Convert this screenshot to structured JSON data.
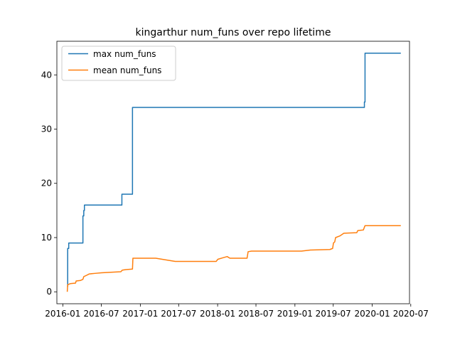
{
  "chart_data": {
    "type": "line",
    "title": "kingarthur num_funs over repo lifetime",
    "xlabel": "",
    "ylabel": "",
    "x_axis_type": "date",
    "xlim": [
      "2015-12-04",
      "2020-06-25"
    ],
    "ylim": [
      -2.2,
      46.2
    ],
    "x_ticks": [
      {
        "date": "2016-01-01",
        "label": "2016-01"
      },
      {
        "date": "2016-07-01",
        "label": "2016-07"
      },
      {
        "date": "2017-01-01",
        "label": "2017-01"
      },
      {
        "date": "2017-07-01",
        "label": "2017-07"
      },
      {
        "date": "2018-01-01",
        "label": "2018-01"
      },
      {
        "date": "2018-07-01",
        "label": "2018-07"
      },
      {
        "date": "2019-01-01",
        "label": "2019-01"
      },
      {
        "date": "2019-07-01",
        "label": "2019-07"
      },
      {
        "date": "2020-01-01",
        "label": "2020-01"
      },
      {
        "date": "2020-07-01",
        "label": "2020-07"
      }
    ],
    "y_ticks": [
      0,
      10,
      20,
      30,
      40
    ],
    "grid": false,
    "legend_position": "top-left",
    "series": [
      {
        "name": "max num_funs",
        "color": "#1f77b4",
        "step": true,
        "points": [
          [
            "2016-01-22",
            1
          ],
          [
            "2016-01-24",
            8
          ],
          [
            "2016-01-29",
            9
          ],
          [
            "2016-04-05",
            14
          ],
          [
            "2016-04-09",
            15
          ],
          [
            "2016-04-12",
            16
          ],
          [
            "2016-10-06",
            18
          ],
          [
            "2016-11-25",
            34
          ],
          [
            "2019-11-25",
            35
          ],
          [
            "2019-11-28",
            44
          ],
          [
            "2020-05-15",
            44
          ]
        ]
      },
      {
        "name": "mean num_funs",
        "color": "#ff7f0e",
        "step": false,
        "points": [
          [
            "2016-01-22",
            0
          ],
          [
            "2016-01-24",
            1.3
          ],
          [
            "2016-02-05",
            1.5
          ],
          [
            "2016-03-01",
            1.6
          ],
          [
            "2016-03-04",
            2.0
          ],
          [
            "2016-03-25",
            2.1
          ],
          [
            "2016-04-05",
            2.3
          ],
          [
            "2016-04-09",
            2.8
          ],
          [
            "2016-04-20",
            3.0
          ],
          [
            "2016-05-05",
            3.3
          ],
          [
            "2016-06-01",
            3.4
          ],
          [
            "2016-07-01",
            3.5
          ],
          [
            "2016-08-15",
            3.6
          ],
          [
            "2016-10-01",
            3.7
          ],
          [
            "2016-10-08",
            4.0
          ],
          [
            "2016-10-25",
            4.1
          ],
          [
            "2016-11-25",
            4.2
          ],
          [
            "2016-11-27",
            6.2
          ],
          [
            "2017-03-15",
            6.2
          ],
          [
            "2017-05-15",
            5.8
          ],
          [
            "2017-06-15",
            5.6
          ],
          [
            "2017-12-25",
            5.6
          ],
          [
            "2018-01-02",
            6.0
          ],
          [
            "2018-01-28",
            6.3
          ],
          [
            "2018-02-15",
            6.5
          ],
          [
            "2018-02-28",
            6.2
          ],
          [
            "2018-05-20",
            6.2
          ],
          [
            "2018-05-25",
            7.4
          ],
          [
            "2018-06-10",
            7.5
          ],
          [
            "2019-02-01",
            7.5
          ],
          [
            "2019-03-15",
            7.7
          ],
          [
            "2019-06-15",
            7.8
          ],
          [
            "2019-06-28",
            8.0
          ],
          [
            "2019-07-02",
            9.0
          ],
          [
            "2019-07-08",
            9.2
          ],
          [
            "2019-07-12",
            10.0
          ],
          [
            "2019-08-01",
            10.3
          ],
          [
            "2019-08-20",
            10.8
          ],
          [
            "2019-10-20",
            10.9
          ],
          [
            "2019-10-25",
            11.3
          ],
          [
            "2019-11-20",
            11.4
          ],
          [
            "2019-11-28",
            12.2
          ],
          [
            "2020-05-15",
            12.2
          ]
        ]
      }
    ]
  }
}
